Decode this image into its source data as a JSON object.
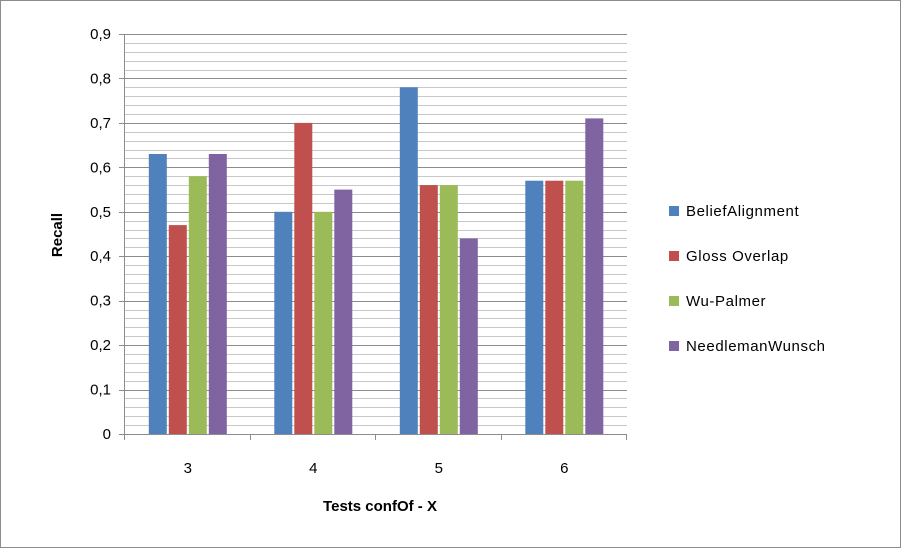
{
  "chart_data": {
    "type": "bar",
    "title": "",
    "xlabel": "Tests confOf - X",
    "ylabel": "Recall",
    "categories": [
      "3",
      "4",
      "5",
      "6"
    ],
    "series": [
      {
        "name": "BeliefAlignment",
        "color": "#4F81BD",
        "values": [
          0.63,
          0.5,
          0.78,
          0.57
        ]
      },
      {
        "name": "Gloss Overlap",
        "color": "#C0504D",
        "values": [
          0.47,
          0.7,
          0.56,
          0.57
        ]
      },
      {
        "name": "Wu-Palmer",
        "color": "#9BBB59",
        "values": [
          0.58,
          0.5,
          0.56,
          0.57
        ]
      },
      {
        "name": "NeedlemanWunsch",
        "color": "#8064A2",
        "values": [
          0.63,
          0.55,
          0.44,
          0.71
        ]
      }
    ],
    "ylim": [
      0,
      0.9
    ],
    "yticks": [
      "0",
      "0,1",
      "0,2",
      "0,3",
      "0,4",
      "0,5",
      "0,6",
      "0,7",
      "0,8",
      "0,9"
    ],
    "grid": true,
    "legend": "right"
  }
}
